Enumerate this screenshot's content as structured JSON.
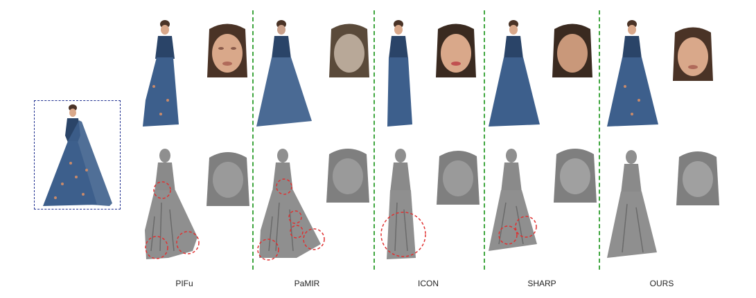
{
  "methods": [
    {
      "name": "PIFu"
    },
    {
      "name": "PaMIR"
    },
    {
      "name": "ICON"
    },
    {
      "name": "SHARP"
    },
    {
      "name": "OURS"
    }
  ],
  "colors": {
    "dress_blue": "#3d5f8c",
    "dress_dark": "#2a4468",
    "skin": "#d9a88a",
    "hair": "#4a3326",
    "mesh_gray": "#8f8f8f",
    "mesh_dark": "#6a6a6a",
    "circle_red": "#e03030",
    "separator_green": "#3fa63f",
    "input_border": "#1f2f8f"
  },
  "failure_circles_per_method": [
    3,
    4,
    1,
    2,
    0
  ]
}
